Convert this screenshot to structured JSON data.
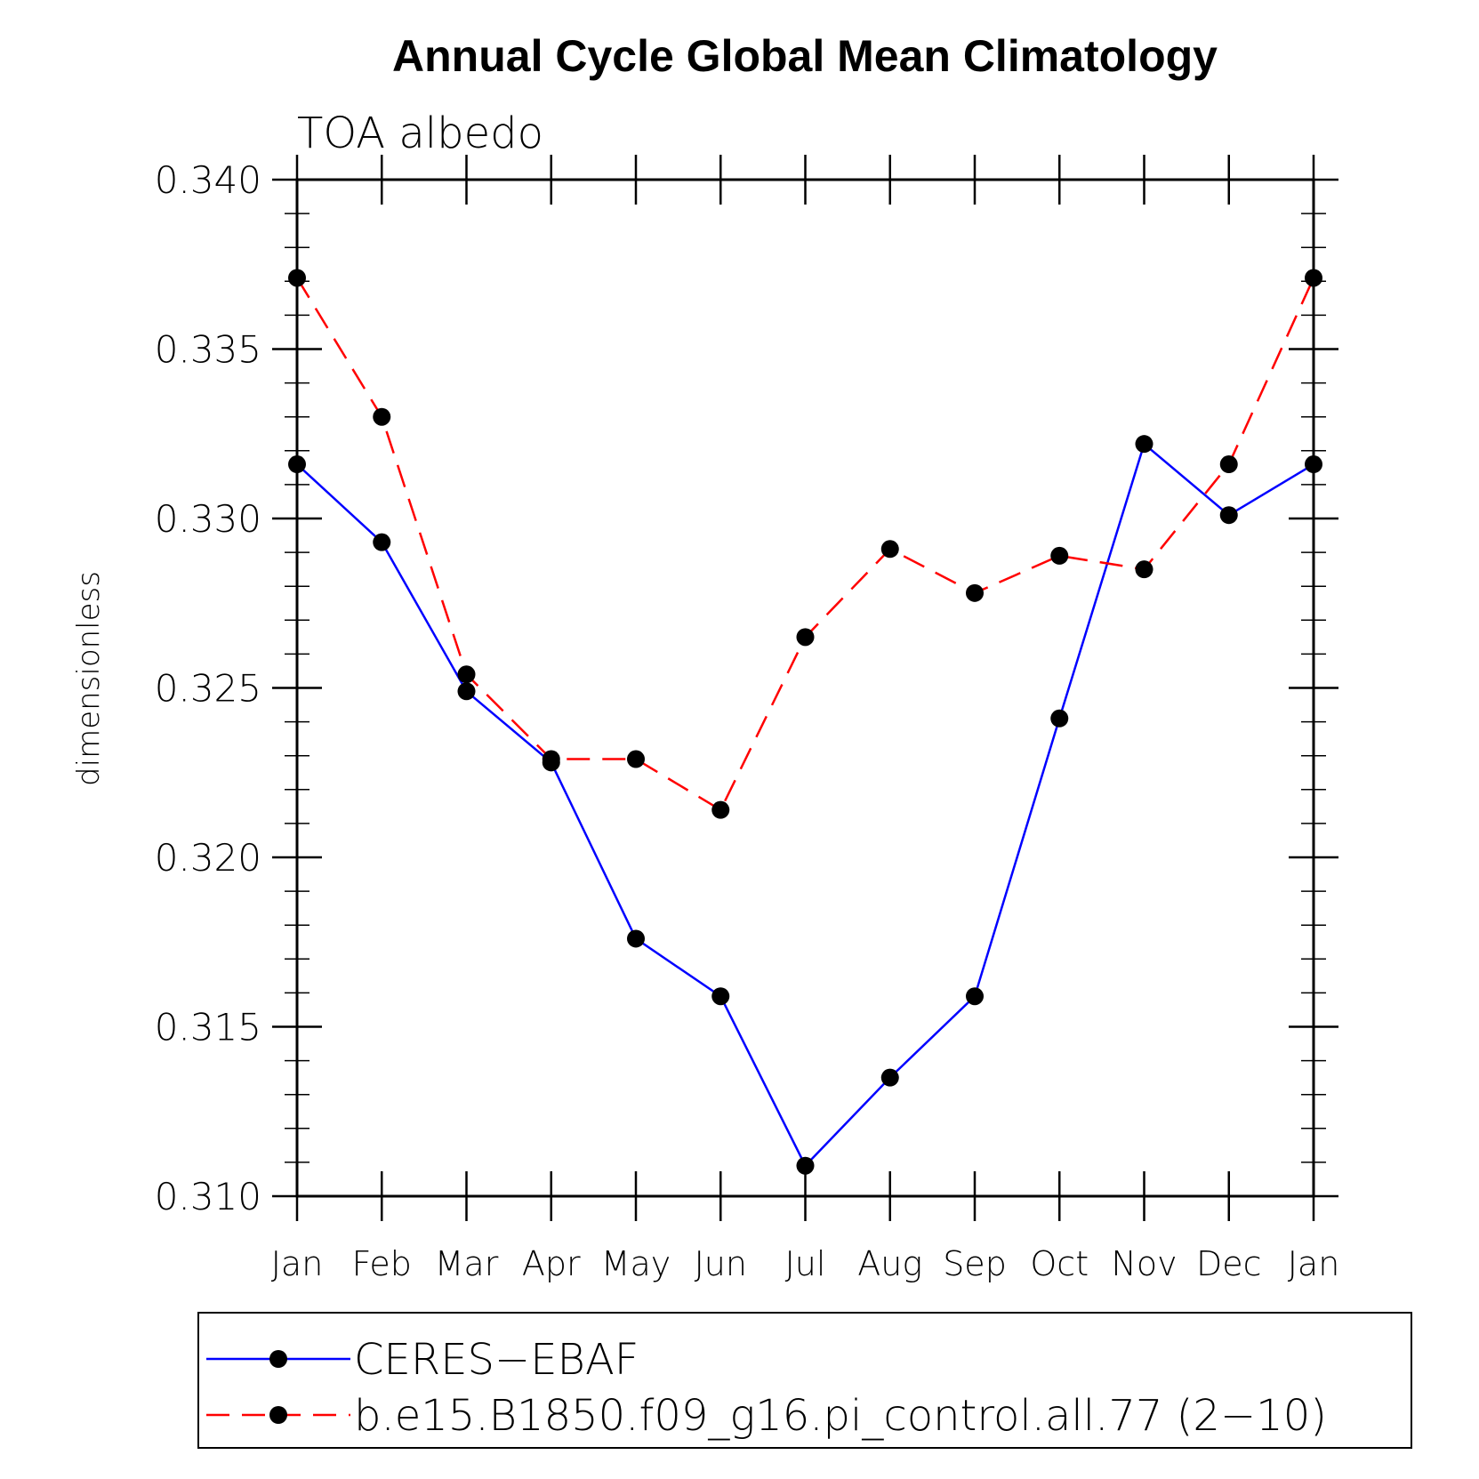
{
  "chart_data": {
    "type": "line",
    "title": "Annual Cycle Global Mean Climatology",
    "subtitle": "TOA albedo",
    "ylabel": "dimensionless",
    "xlabel": "",
    "categories": [
      "Jan",
      "Feb",
      "Mar",
      "Apr",
      "May",
      "Jun",
      "Jul",
      "Aug",
      "Sep",
      "Oct",
      "Nov",
      "Dec",
      "Jan"
    ],
    "ylim": [
      0.31,
      0.34
    ],
    "y_major_ticks": [
      "0.310",
      "0.315",
      "0.320",
      "0.325",
      "0.330",
      "0.335",
      "0.340"
    ],
    "y_minor_step": 0.001,
    "grid": false,
    "legend_position": "bottom",
    "series": [
      {
        "name": "CERES−EBAF",
        "color": "#0000ff",
        "dash": "solid",
        "marker": "filled-circle",
        "values": [
          0.3316,
          0.3293,
          0.3249,
          0.3228,
          0.3176,
          0.3159,
          0.3109,
          0.3135,
          0.3159,
          0.3241,
          0.3322,
          0.3301,
          0.3316
        ]
      },
      {
        "name": "b.e15.B1850.f09_g16.pi_control.all.77 (2−10)",
        "color": "#ff0000",
        "dash": "dashed",
        "marker": "filled-circle",
        "values": [
          0.3371,
          0.333,
          0.3254,
          0.3229,
          0.3229,
          0.3214,
          0.3265,
          0.3291,
          0.3278,
          0.3289,
          0.3285,
          0.3316,
          0.3371
        ]
      }
    ]
  }
}
